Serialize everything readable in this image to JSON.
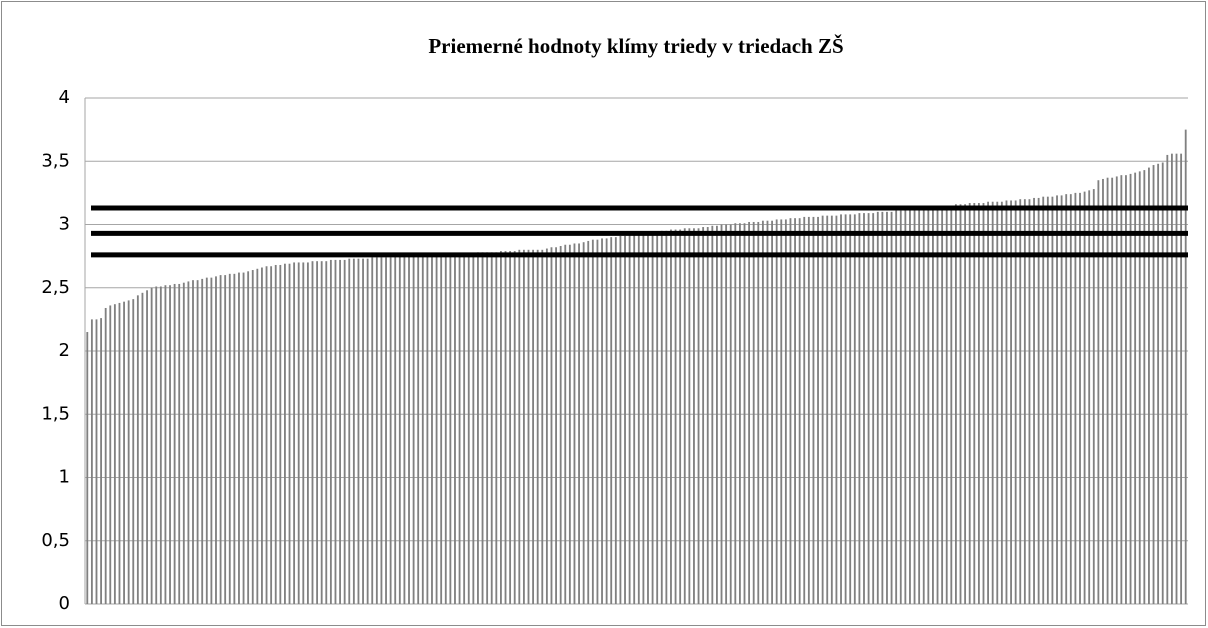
{
  "chart_data": {
    "type": "bar",
    "title": "Priemerné hodnoty klímy triedy v triedach ZŠ",
    "categories": [
      null,
      null,
      null,
      null,
      null,
      null,
      null,
      null,
      null,
      null,
      null,
      null,
      null,
      null,
      null,
      null,
      null,
      null,
      null,
      null,
      null,
      null,
      null,
      null,
      null,
      null,
      null,
      null,
      null,
      null,
      null,
      null,
      null,
      null,
      null,
      null,
      null,
      null,
      null,
      null,
      null,
      null,
      null,
      null,
      null,
      null,
      null,
      null,
      null,
      null,
      null,
      null,
      null,
      null,
      null,
      null,
      null,
      null,
      null,
      null,
      null,
      null,
      null,
      null,
      null,
      null,
      null,
      null,
      null,
      null,
      null,
      null,
      null,
      null,
      null,
      null,
      null,
      null,
      null,
      null,
      null,
      null,
      null,
      null,
      null,
      null,
      null,
      null,
      null,
      null,
      null,
      null,
      null,
      null,
      null,
      null,
      null,
      null,
      null,
      null,
      null,
      null,
      null,
      null,
      null,
      null,
      null,
      null,
      null,
      null,
      null,
      null,
      null,
      null,
      null,
      null,
      null,
      null,
      null,
      null,
      null,
      null,
      null,
      null,
      null,
      null,
      null,
      null,
      null,
      null,
      null,
      null,
      null,
      null,
      null,
      null,
      null,
      null,
      null,
      null,
      null,
      null,
      null,
      null,
      null,
      null,
      null,
      null,
      null,
      null,
      null,
      null,
      null,
      null,
      null,
      null,
      null,
      null,
      null,
      null,
      null,
      null,
      null,
      null,
      null,
      null,
      null,
      null,
      null,
      null,
      null,
      null,
      null,
      null,
      null,
      null,
      null,
      null,
      null,
      null,
      null,
      null,
      null,
      null,
      null,
      null,
      null,
      null,
      null,
      null,
      null,
      null,
      null,
      null,
      null,
      null,
      null,
      null,
      null,
      null,
      null,
      null,
      null,
      null,
      null,
      null,
      null,
      null,
      null,
      null,
      null,
      null,
      null,
      null,
      null,
      null,
      null,
      null,
      null,
      null,
      null,
      null,
      null,
      null,
      null,
      null,
      null,
      null,
      null,
      null,
      null,
      null,
      null,
      null,
      null,
      null,
      null,
      null,
      null,
      null
    ],
    "values": [
      2.15,
      2.25,
      2.25,
      2.26,
      2.34,
      2.36,
      2.37,
      2.38,
      2.39,
      2.4,
      2.41,
      2.44,
      2.46,
      2.48,
      2.5,
      2.51,
      2.51,
      2.52,
      2.52,
      2.53,
      2.53,
      2.54,
      2.55,
      2.56,
      2.56,
      2.57,
      2.58,
      2.58,
      2.59,
      2.6,
      2.6,
      2.61,
      2.61,
      2.62,
      2.62,
      2.63,
      2.64,
      2.65,
      2.66,
      2.67,
      2.67,
      2.68,
      2.68,
      2.69,
      2.69,
      2.7,
      2.7,
      2.7,
      2.7,
      2.71,
      2.71,
      2.71,
      2.71,
      2.72,
      2.72,
      2.72,
      2.72,
      2.73,
      2.73,
      2.73,
      2.73,
      2.73,
      2.74,
      2.74,
      2.74,
      2.74,
      2.74,
      2.75,
      2.75,
      2.75,
      2.75,
      2.75,
      2.76,
      2.76,
      2.76,
      2.76,
      2.76,
      2.76,
      2.77,
      2.77,
      2.77,
      2.77,
      2.77,
      2.77,
      2.77,
      2.78,
      2.78,
      2.78,
      2.78,
      2.78,
      2.79,
      2.79,
      2.79,
      2.79,
      2.8,
      2.8,
      2.8,
      2.8,
      2.8,
      2.8,
      2.81,
      2.82,
      2.82,
      2.83,
      2.84,
      2.84,
      2.85,
      2.85,
      2.86,
      2.87,
      2.88,
      2.88,
      2.89,
      2.89,
      2.9,
      2.9,
      2.91,
      2.91,
      2.92,
      2.92,
      2.92,
      2.93,
      2.93,
      2.94,
      2.94,
      2.95,
      2.95,
      2.96,
      2.96,
      2.96,
      2.97,
      2.97,
      2.97,
      2.97,
      2.98,
      2.98,
      2.99,
      2.99,
      3.0,
      3.0,
      3.0,
      3.01,
      3.01,
      3.01,
      3.02,
      3.02,
      3.02,
      3.03,
      3.03,
      3.03,
      3.04,
      3.04,
      3.04,
      3.05,
      3.05,
      3.05,
      3.06,
      3.06,
      3.06,
      3.06,
      3.07,
      3.07,
      3.07,
      3.07,
      3.08,
      3.08,
      3.08,
      3.08,
      3.09,
      3.09,
      3.09,
      3.09,
      3.1,
      3.1,
      3.1,
      3.1,
      3.11,
      3.11,
      3.12,
      3.12,
      3.12,
      3.13,
      3.13,
      3.14,
      3.14,
      3.14,
      3.15,
      3.15,
      3.15,
      3.16,
      3.16,
      3.16,
      3.17,
      3.17,
      3.17,
      3.17,
      3.18,
      3.18,
      3.18,
      3.18,
      3.19,
      3.19,
      3.19,
      3.2,
      3.2,
      3.2,
      3.21,
      3.21,
      3.22,
      3.22,
      3.22,
      3.23,
      3.23,
      3.24,
      3.24,
      3.25,
      3.25,
      3.26,
      3.27,
      3.28,
      3.35,
      3.36,
      3.37,
      3.37,
      3.38,
      3.39,
      3.39,
      3.4,
      3.41,
      3.42,
      3.43,
      3.45,
      3.47,
      3.48,
      3.49,
      3.55,
      3.56,
      3.56,
      3.56,
      3.75
    ],
    "color": "#808080",
    "reference_lines": [
      3.13,
      2.93,
      2.76
    ],
    "reference_color": "#000000",
    "ylim": [
      0,
      4
    ],
    "yticks": [
      0,
      {
        "value": 0.5,
        "label": "0,5"
      },
      1,
      {
        "value": 1.5,
        "label": "1,5"
      },
      2,
      {
        "value": 2.5,
        "label": "2,5"
      },
      3,
      {
        "value": 3.5,
        "label": "3,5"
      },
      4
    ],
    "grid": true
  }
}
